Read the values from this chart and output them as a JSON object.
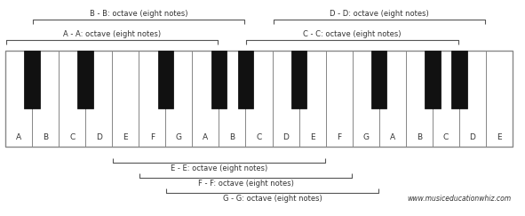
{
  "white_notes": [
    "A",
    "B",
    "C",
    "D",
    "E",
    "F",
    "G",
    "A",
    "B",
    "C",
    "D",
    "E",
    "F",
    "G",
    "A",
    "B",
    "C",
    "D",
    "E"
  ],
  "num_white": 19,
  "black_key_pattern": [
    1,
    0,
    1,
    0,
    0,
    1,
    0,
    1,
    1,
    0,
    1,
    0,
    0,
    1,
    0,
    1,
    1,
    0,
    0
  ],
  "top_brackets": [
    {
      "label": "B - B: octave (eight notes)",
      "start": 1,
      "end": 8,
      "row": 1
    },
    {
      "label": "A - A: octave (eight notes)",
      "start": 0,
      "end": 7,
      "row": 0
    },
    {
      "label": "D - D: octave (eight notes)",
      "start": 10,
      "end": 17,
      "row": 1
    },
    {
      "label": "C - C: octave (eight notes)",
      "start": 9,
      "end": 16,
      "row": 0
    }
  ],
  "bottom_brackets": [
    {
      "label": "E - E: octave (eight notes)",
      "start": 4,
      "end": 11,
      "row": 0
    },
    {
      "label": "F - F: octave (eight notes)",
      "start": 5,
      "end": 12,
      "row": 1
    },
    {
      "label": "G - G: octave (eight notes)",
      "start": 6,
      "end": 13,
      "row": 2
    }
  ],
  "watermark": "www.musiceducationwhiz.com",
  "bg_color": "#ffffff",
  "border_color": "#888888",
  "black_key_color": "#111111",
  "text_color": "#333333",
  "bracket_color": "#555555",
  "figwidth": 5.91,
  "figheight": 2.43,
  "dpi": 100
}
